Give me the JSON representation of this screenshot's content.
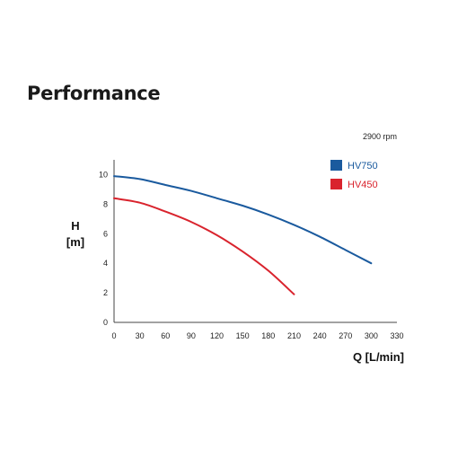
{
  "page": {
    "title": "Performance"
  },
  "chart_data": {
    "type": "line",
    "annotation": "2900 rpm",
    "xlabel": "Q [L/min]",
    "ylabel_line1": "H",
    "ylabel_line2": "[m]",
    "xlim": [
      0,
      330
    ],
    "ylim": [
      0,
      11
    ],
    "xticks": [
      0,
      30,
      60,
      90,
      120,
      150,
      180,
      210,
      240,
      270,
      300,
      330
    ],
    "yticks": [
      0,
      2,
      4,
      6,
      8,
      10
    ],
    "grid": false,
    "legend_position": "top-right",
    "series": [
      {
        "name": "HV750",
        "color": "#1a5a9e",
        "x": [
          0,
          30,
          60,
          90,
          120,
          150,
          180,
          210,
          240,
          270,
          300
        ],
        "y": [
          9.9,
          9.7,
          9.3,
          8.9,
          8.4,
          7.9,
          7.3,
          6.6,
          5.8,
          4.9,
          4.0
        ]
      },
      {
        "name": "HV450",
        "color": "#d9232d",
        "x": [
          0,
          30,
          60,
          90,
          120,
          150,
          180,
          210
        ],
        "y": [
          8.4,
          8.1,
          7.5,
          6.8,
          5.9,
          4.8,
          3.5,
          1.9
        ]
      }
    ]
  }
}
